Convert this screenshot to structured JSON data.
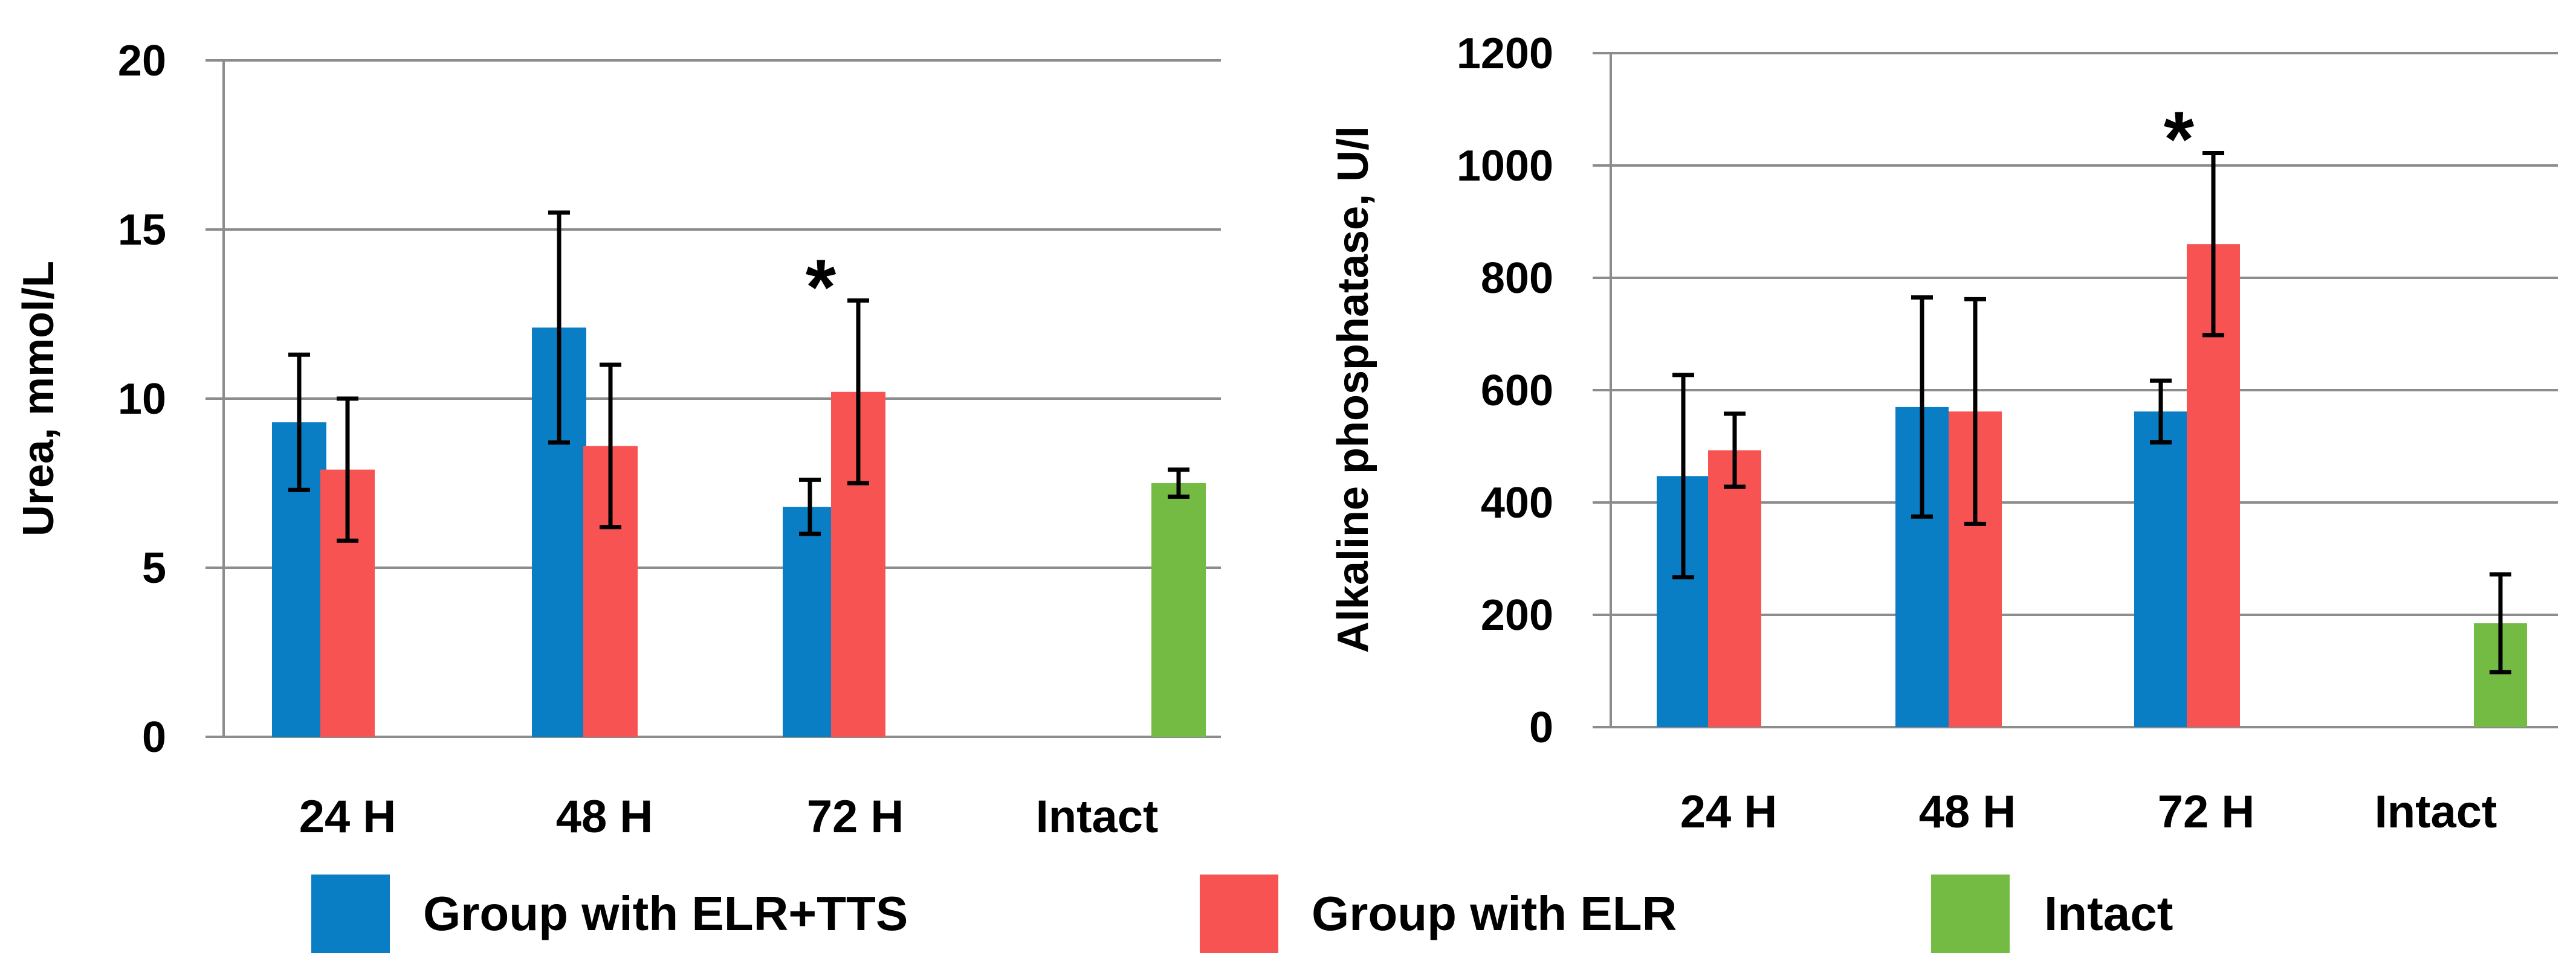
{
  "series_meta": [
    {
      "name": "Group with ELR+TTS",
      "color": "#0a7ec4"
    },
    {
      "name": "Group with ELR",
      "color": "#f75353"
    },
    {
      "name": "Intact",
      "color": "#74bb44"
    }
  ],
  "legend": {
    "items": [
      "Group with ELR+TTS",
      "Group with ELR",
      "Intact"
    ],
    "position": "bottom"
  },
  "chart_data": [
    {
      "type": "bar",
      "title": "",
      "xlabel": "",
      "ylabel": "Urea, mmol/L",
      "ylim": [
        0,
        20
      ],
      "yticks": [
        0,
        5,
        10,
        15,
        20
      ],
      "ytick_labels": [
        "0",
        "5",
        "10",
        "15",
        "20"
      ],
      "categories": [
        "24 H",
        "48 H",
        "72 H",
        "Intact"
      ],
      "grid": true,
      "series": [
        {
          "name": "Group with ELR+TTS",
          "values": [
            9.3,
            12.1,
            6.8,
            null
          ],
          "errors": [
            2.0,
            3.4,
            0.8,
            null
          ]
        },
        {
          "name": "Group with ELR",
          "values": [
            7.9,
            8.6,
            10.2,
            null
          ],
          "errors": [
            2.1,
            2.4,
            2.7,
            null
          ]
        },
        {
          "name": "Intact",
          "values": [
            null,
            null,
            null,
            7.5
          ],
          "errors": [
            null,
            null,
            null,
            0.4
          ]
        }
      ],
      "annotations": [
        {
          "text": "*",
          "category": "72 H",
          "series": "Group with ELR"
        }
      ]
    },
    {
      "type": "bar",
      "title": "",
      "xlabel": "",
      "ylabel": "Alkaline phosphatase, U/l",
      "ylim": [
        0,
        1200
      ],
      "yticks": [
        0,
        200,
        400,
        600,
        800,
        1000,
        1200
      ],
      "ytick_labels": [
        "0",
        "200",
        "400",
        "600",
        "800",
        "1000",
        "1200"
      ],
      "categories": [
        "24 H",
        "48 H",
        "72 H",
        "Intact"
      ],
      "grid": true,
      "series": [
        {
          "name": "Group with ELR+TTS",
          "values": [
            447,
            570,
            562,
            null
          ],
          "errors": [
            180,
            195,
            55,
            null
          ]
        },
        {
          "name": "Group with ELR",
          "values": [
            493,
            562,
            860,
            null
          ],
          "errors": [
            65,
            200,
            162,
            null
          ]
        },
        {
          "name": "Intact",
          "values": [
            null,
            null,
            null,
            185
          ],
          "errors": [
            null,
            null,
            null,
            87
          ]
        }
      ],
      "annotations": [
        {
          "text": "*",
          "category": "72 H",
          "series": "Group with ELR"
        }
      ]
    }
  ]
}
